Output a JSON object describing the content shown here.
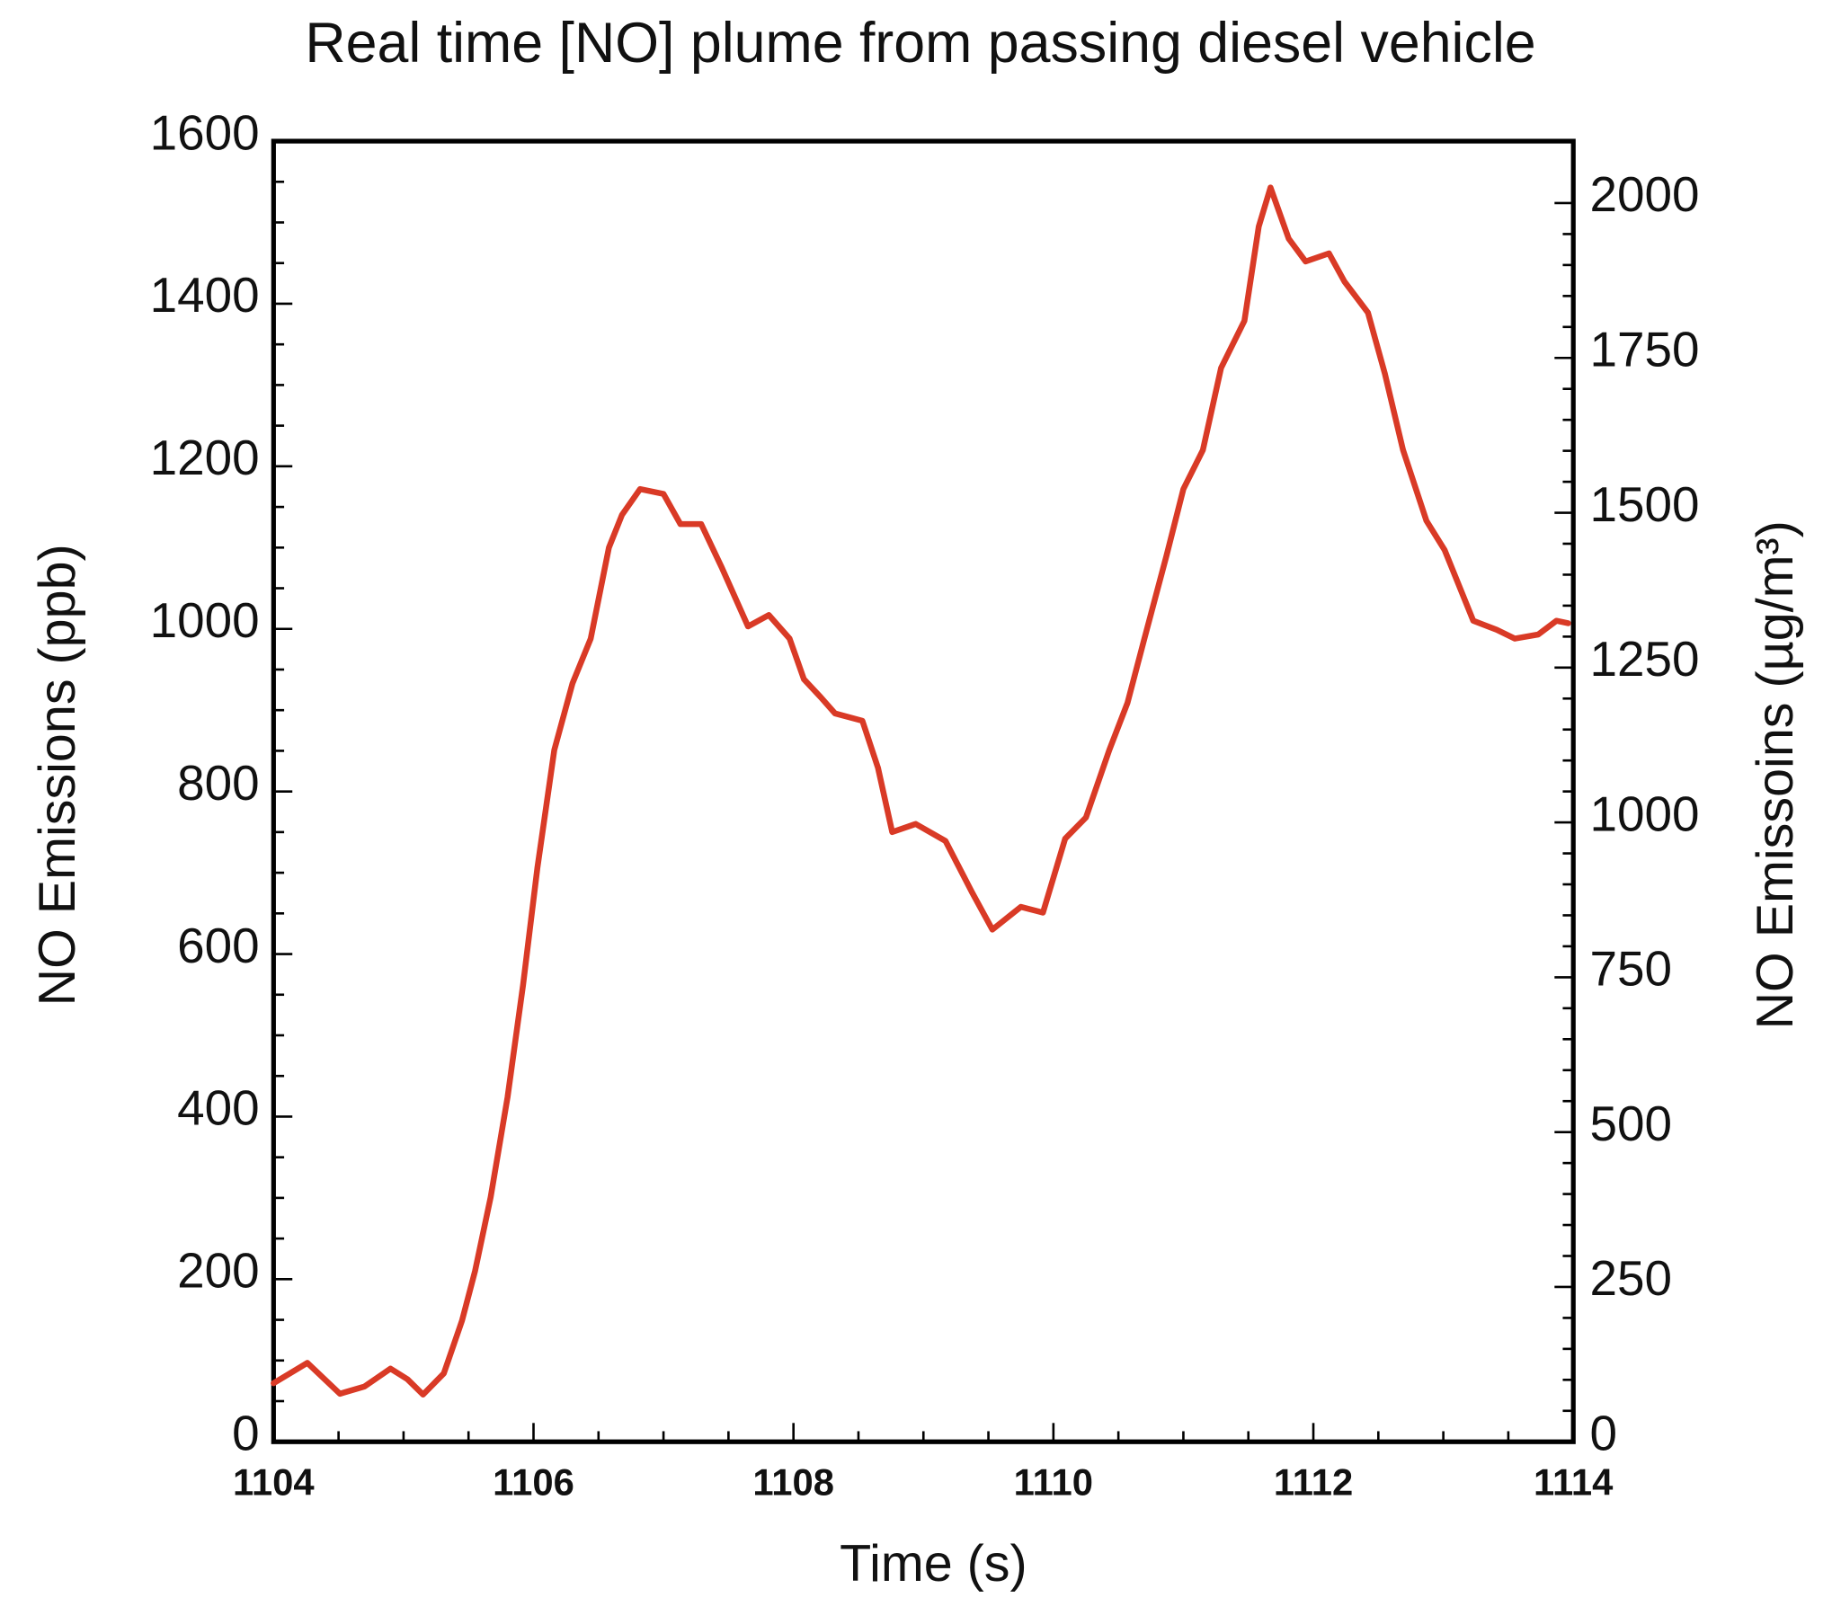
{
  "chart_data": {
    "type": "line",
    "title": "Real time [NO] plume from passing diesel vehicle",
    "x_label": "Time (s)",
    "y_label": "NO Emissions (ppb)",
    "y2_label": "NO Emissoins (µg/m³)",
    "xlim": [
      1104,
      1114
    ],
    "xticks": [
      1104,
      1106,
      1108,
      1110,
      1112,
      1114
    ],
    "ylim": [
      0,
      1600
    ],
    "yticks": [
      0,
      200,
      400,
      600,
      800,
      1000,
      1200,
      1400,
      1600
    ],
    "y2lim": [
      0,
      2100
    ],
    "y2ticks": [
      0,
      250,
      500,
      750,
      1000,
      1250,
      1500,
      1750,
      2000
    ],
    "series": [
      {
        "color": "#d93a26",
        "x": [
          1104.0,
          1104.26,
          1104.51,
          1104.7,
          1104.9,
          1105.03,
          1105.15,
          1105.31,
          1105.45,
          1105.55,
          1105.67,
          1105.8,
          1105.92,
          1106.03,
          1106.16,
          1106.3,
          1106.44,
          1106.58,
          1106.68,
          1106.82,
          1107.0,
          1107.13,
          1107.29,
          1107.45,
          1107.65,
          1107.81,
          1107.97,
          1108.08,
          1108.21,
          1108.32,
          1108.53,
          1108.65,
          1108.76,
          1108.94,
          1109.17,
          1109.37,
          1109.53,
          1109.75,
          1109.92,
          1110.09,
          1110.25,
          1110.43,
          1110.57,
          1110.7,
          1110.87,
          1111.0,
          1111.15,
          1111.29,
          1111.47,
          1111.58,
          1111.67,
          1111.81,
          1111.94,
          1112.12,
          1112.24,
          1112.42,
          1112.55,
          1112.69,
          1112.87,
          1113.01,
          1113.23,
          1113.41,
          1113.55,
          1113.73,
          1113.87,
          1113.96
        ],
        "values": [
          72,
          97,
          59,
          68,
          90,
          77,
          58,
          84,
          149,
          210,
          301,
          424,
          562,
          706,
          851,
          933,
          988,
          1100,
          1140,
          1172,
          1166,
          1129,
          1129,
          1075,
          1003,
          1017,
          988,
          938,
          916,
          896,
          887,
          829,
          750,
          760,
          739,
          677,
          630,
          658,
          651,
          742,
          768,
          851,
          909,
          988,
          1090,
          1172,
          1220,
          1321,
          1379,
          1495,
          1543,
          1480,
          1452,
          1462,
          1427,
          1389,
          1314,
          1220,
          1133,
          1097,
          1010,
          999,
          988,
          993,
          1010,
          1007
        ]
      }
    ]
  }
}
